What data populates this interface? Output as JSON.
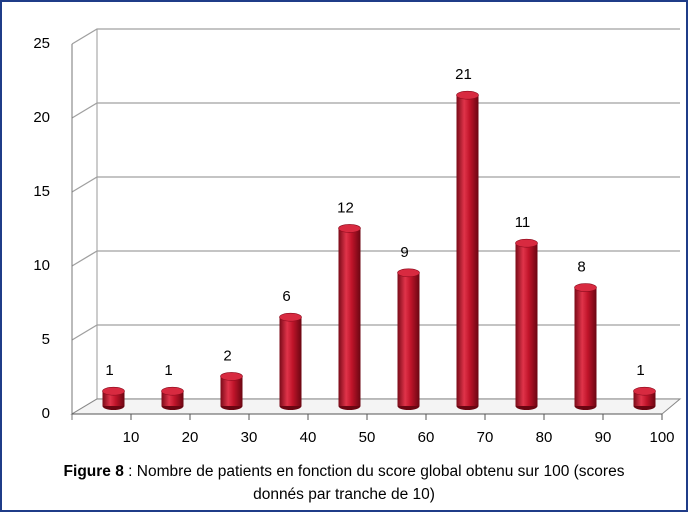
{
  "chart_data": {
    "type": "histogram",
    "bins": [
      0,
      10,
      20,
      30,
      40,
      50,
      60,
      70,
      80,
      90,
      100
    ],
    "values": [
      1,
      1,
      2,
      6,
      12,
      9,
      21,
      11,
      8,
      1
    ],
    "color": "#c0142a",
    "xlim": [
      0,
      100
    ],
    "xticks": [
      10,
      20,
      30,
      40,
      50,
      60,
      70,
      80,
      90,
      100
    ],
    "ylim": [
      0,
      25
    ],
    "yticks": [
      0,
      5,
      10,
      15,
      20,
      25
    ],
    "grid": true,
    "caption_label": "Figure 8",
    "caption_text": " : Nombre de patients en fonction du score global obtenu sur 100 (scores donnés par tranche de 10)"
  }
}
